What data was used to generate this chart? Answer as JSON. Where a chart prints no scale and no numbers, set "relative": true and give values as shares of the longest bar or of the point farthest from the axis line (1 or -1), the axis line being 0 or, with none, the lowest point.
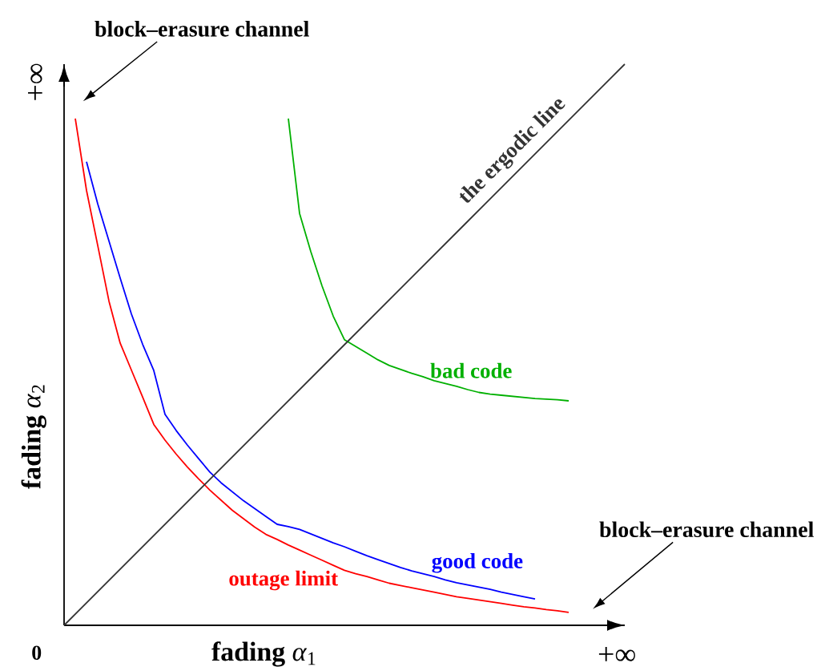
{
  "chart_data": {
    "type": "line",
    "relative": true,
    "xlabel": "**fading** *α*$_{1}$",
    "ylabel": "**fading** *α*$_{2}$",
    "categories": [
      null,
      null,
      null,
      null,
      null,
      null,
      null,
      null,
      null,
      null,
      null,
      null,
      null,
      null,
      null,
      null,
      null,
      null,
      null,
      null,
      null,
      null,
      null,
      null,
      null,
      null,
      null,
      null,
      null,
      null,
      null,
      null,
      null,
      null,
      null,
      null,
      null,
      null,
      null,
      null,
      null,
      null,
      null,
      null,
      null,
      null,
      null,
      null,
      null,
      null,
      null
    ],
    "series": [
      {
        "name": "outage limit",
        "color": "#ff0000",
        "values": [
          null,
          0.903,
          0.775,
          0.677,
          0.578,
          0.503,
          0.455,
          0.407,
          0.358,
          0.33,
          0.305,
          0.282,
          0.261,
          0.241,
          0.223,
          0.205,
          0.19,
          0.175,
          0.162,
          0.153,
          0.143,
          0.134,
          0.125,
          0.116,
          0.107,
          0.098,
          0.092,
          0.087,
          0.081,
          0.075,
          0.071,
          0.067,
          0.063,
          0.059,
          0.055,
          0.051,
          0.048,
          0.045,
          0.042,
          0.039,
          0.036,
          0.033,
          0.031,
          0.028,
          0.026,
          0.023,
          null,
          null,
          null,
          null,
          null
        ]
      },
      {
        "name": "good code",
        "color": "#0000ff",
        "values": [
          null,
          null,
          0.826,
          0.751,
          0.685,
          0.619,
          0.555,
          0.501,
          0.454,
          0.376,
          0.347,
          0.321,
          0.297,
          0.273,
          0.254,
          0.238,
          0.222,
          0.208,
          0.194,
          0.18,
          0.176,
          0.171,
          0.163,
          0.155,
          0.147,
          0.14,
          0.132,
          0.124,
          0.117,
          0.11,
          0.103,
          0.097,
          0.092,
          0.087,
          0.081,
          0.076,
          0.072,
          0.068,
          0.064,
          0.059,
          0.055,
          0.051,
          0.047,
          null,
          null,
          null,
          null,
          null,
          null,
          null,
          null
        ]
      },
      {
        "name": "bad code",
        "color": "#00b000",
        "values": [
          null,
          null,
          null,
          null,
          null,
          null,
          null,
          null,
          null,
          null,
          null,
          null,
          null,
          null,
          null,
          null,
          null,
          null,
          null,
          null,
          0.903,
          0.734,
          0.666,
          0.605,
          0.551,
          0.509,
          0.497,
          0.485,
          0.473,
          0.463,
          0.456,
          0.449,
          0.443,
          0.436,
          0.431,
          0.426,
          0.42,
          0.415,
          0.412,
          0.41,
          0.408,
          0.406,
          0.404,
          0.403,
          0.402,
          0.4,
          null,
          null,
          null,
          null,
          null
        ]
      },
      {
        "name": "the ergodic line",
        "color": "#333333",
        "values": [
          0,
          0.02,
          0.04,
          0.06,
          0.08,
          0.1,
          0.12,
          0.14,
          0.16,
          0.18,
          0.2,
          0.22,
          0.24,
          0.26,
          0.28,
          0.3,
          0.32,
          0.34,
          0.36,
          0.38,
          0.4,
          0.42,
          0.44,
          0.46,
          0.48,
          0.5,
          0.52,
          0.54,
          0.56,
          0.58,
          0.6,
          0.62,
          0.64,
          0.66,
          0.68,
          0.7,
          0.72,
          0.74,
          0.76,
          0.78,
          0.8,
          0.82,
          0.84,
          0.86,
          0.88,
          0.9,
          0.92,
          0.94,
          0.96,
          0.98,
          1
        ]
      }
    ],
    "annotations": [
      "block–erasure channel",
      "+∞",
      "block–erasure channel",
      "0",
      "+∞"
    ]
  }
}
